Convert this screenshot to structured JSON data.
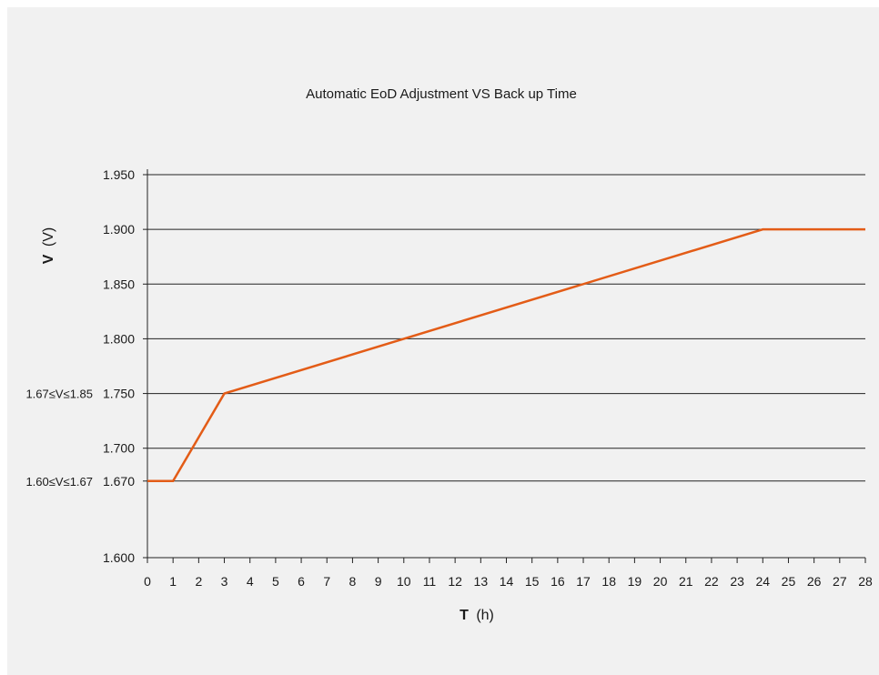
{
  "chart_data": {
    "type": "line",
    "title": "Automatic EoD Adjustment VS Back up Time",
    "xlabel_bold": "T",
    "xlabel_unit": "(h)",
    "ylabel_bold": "V",
    "ylabel_unit": "(V)",
    "xlim": [
      0,
      28
    ],
    "ylim": [
      1.6,
      1.95
    ],
    "x_ticks": [
      0,
      1,
      2,
      3,
      4,
      5,
      6,
      7,
      8,
      9,
      10,
      11,
      12,
      13,
      14,
      15,
      16,
      17,
      18,
      19,
      20,
      21,
      22,
      23,
      24,
      25,
      26,
      27,
      28
    ],
    "y_ticks": [
      "1.600",
      "1.670",
      "1.700",
      "1.750",
      "1.800",
      "1.850",
      "1.900",
      "1.950"
    ],
    "y_tick_values": [
      1.6,
      1.67,
      1.7,
      1.75,
      1.8,
      1.85,
      1.9,
      1.95
    ],
    "grid": "horizontal",
    "side_annotations": [
      {
        "text": "1.60≤V≤1.67",
        "y": 1.67
      },
      {
        "text": "1.67≤V≤1.85",
        "y": 1.75
      }
    ],
    "series": [
      {
        "color": "#e35c17",
        "x": [
          0,
          1,
          3,
          24,
          28
        ],
        "y": [
          1.67,
          1.67,
          1.75,
          1.9,
          1.9
        ]
      }
    ]
  }
}
